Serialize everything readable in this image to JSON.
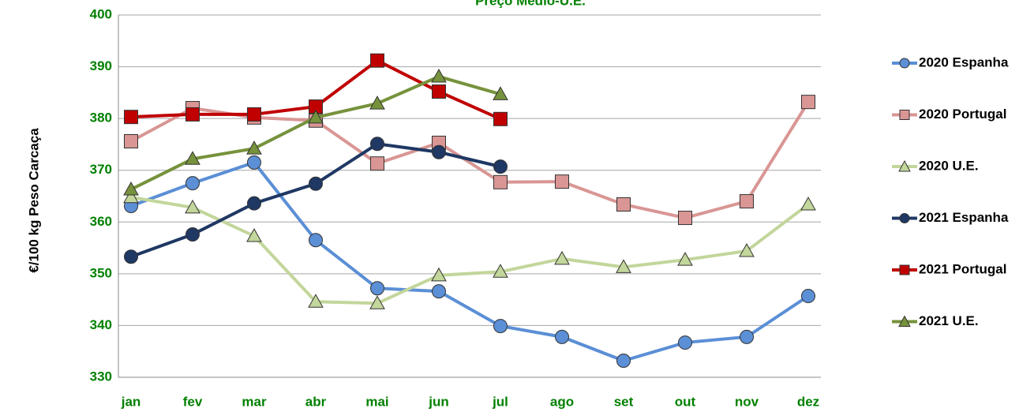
{
  "chart_data": {
    "type": "line",
    "title": "Preço Médio-U.E.",
    "y_label": "€/100 kg Peso Carcaça",
    "categories": [
      "jan",
      "fev",
      "mar",
      "abr",
      "mai",
      "jun",
      "jul",
      "ago",
      "set",
      "out",
      "nov",
      "dez"
    ],
    "ylim": [
      330,
      400
    ],
    "yticks": [
      330,
      340,
      350,
      360,
      370,
      380,
      390,
      400
    ],
    "grid": true,
    "legend": "right",
    "series": [
      {
        "name": "2020 Espanha",
        "color": "#5b8fd6",
        "marker": "circle",
        "values": [
          363.1,
          367.5,
          371.5,
          356.5,
          347.2,
          346.6,
          339.9,
          337.8,
          333.2,
          336.7,
          337.8,
          345.7
        ]
      },
      {
        "name": "2020 Portugal",
        "color": "#d99694",
        "marker": "square",
        "values": [
          375.6,
          382.0,
          380.2,
          379.6,
          371.3,
          375.3,
          367.7,
          367.8,
          363.4,
          360.8,
          364.0,
          383.2
        ]
      },
      {
        "name": "2020 U.E.",
        "color": "#c3d69b",
        "marker": "triangle",
        "values": [
          364.8,
          362.8,
          357.3,
          344.6,
          344.3,
          349.7,
          350.4,
          352.9,
          351.3,
          352.7,
          354.4,
          363.4
        ]
      },
      {
        "name": "2021 Espanha",
        "color": "#1f3864",
        "marker": "circle",
        "values": [
          353.3,
          357.6,
          363.6,
          367.4,
          375.1,
          373.5,
          370.7,
          null,
          null,
          null,
          null,
          null
        ]
      },
      {
        "name": "2021 Portugal",
        "color": "#c00000",
        "marker": "square",
        "values": [
          380.3,
          380.8,
          380.8,
          382.3,
          391.2,
          385.2,
          379.9,
          null,
          null,
          null,
          null,
          null
        ]
      },
      {
        "name": "2021 U.E.",
        "color": "#76923c",
        "marker": "triangle",
        "values": [
          366.3,
          372.2,
          374.2,
          380.2,
          382.9,
          388.1,
          384.7,
          null,
          null,
          null,
          null,
          null
        ]
      }
    ]
  }
}
